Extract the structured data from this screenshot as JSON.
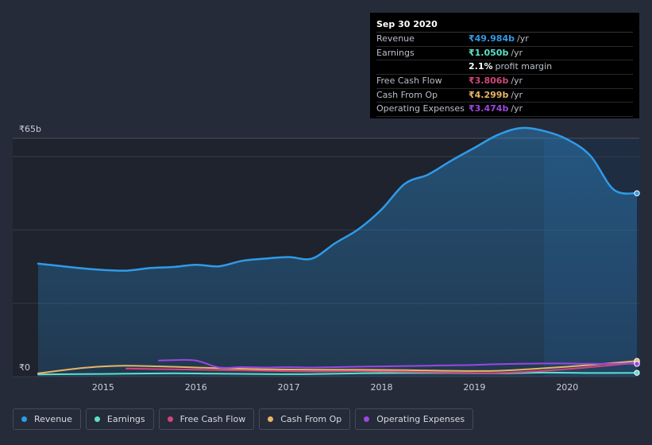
{
  "colors": {
    "revenue": "#2f9be8",
    "earnings": "#5de0c8",
    "free_cash_flow": "#d2457c",
    "cash_from_op": "#e9b466",
    "operating_expenses": "#9b47e0"
  },
  "tooltip": {
    "date": "Sep 30 2020",
    "rows": [
      {
        "label": "Revenue",
        "value": "₹49.984b",
        "unit": "/yr",
        "color": "#2f9be8"
      },
      {
        "label": "Earnings",
        "value": "₹1.050b",
        "unit": "/yr",
        "color": "#5de0c8"
      },
      {
        "label": "",
        "value": "2.1%",
        "unit": "profit margin",
        "color": "#ffffff"
      },
      {
        "label": "Free Cash Flow",
        "value": "₹3.806b",
        "unit": "/yr",
        "color": "#d2457c"
      },
      {
        "label": "Cash From Op",
        "value": "₹4.299b",
        "unit": "/yr",
        "color": "#e9b466"
      },
      {
        "label": "Operating Expenses",
        "value": "₹3.474b",
        "unit": "/yr",
        "color": "#9b47e0"
      }
    ]
  },
  "legend": [
    {
      "label": "Revenue",
      "color": "#2f9be8"
    },
    {
      "label": "Earnings",
      "color": "#5de0c8"
    },
    {
      "label": "Free Cash Flow",
      "color": "#d2457c"
    },
    {
      "label": "Cash From Op",
      "color": "#e9b466"
    },
    {
      "label": "Operating Expenses",
      "color": "#9b47e0"
    }
  ],
  "chart_data": {
    "type": "area",
    "y_top_label": "₹65b",
    "y_bottom_label": "₹0",
    "ylim": [
      0,
      65
    ],
    "xlim": [
      2014.3,
      2020.75
    ],
    "x_ticks": [
      {
        "value": 2015,
        "label": "2015"
      },
      {
        "value": 2016,
        "label": "2016"
      },
      {
        "value": 2017,
        "label": "2017"
      },
      {
        "value": 2018,
        "label": "2018"
      },
      {
        "value": 2019,
        "label": "2019"
      },
      {
        "value": 2020,
        "label": "2020"
      }
    ],
    "y_grid": [
      0,
      20,
      40,
      60,
      65
    ],
    "highlight_from": 2019.75,
    "series": [
      {
        "name": "Revenue",
        "color": "#2f9be8",
        "fill": true,
        "x": [
          2014.3,
          2014.5,
          2014.75,
          2015.0,
          2015.25,
          2015.5,
          2015.75,
          2016.0,
          2016.25,
          2016.5,
          2016.75,
          2017.0,
          2017.25,
          2017.5,
          2017.75,
          2018.0,
          2018.25,
          2018.5,
          2018.75,
          2019.0,
          2019.25,
          2019.5,
          2019.75,
          2020.0,
          2020.25,
          2020.5,
          2020.75
        ],
        "y": [
          30.8,
          30.3,
          29.6,
          29.1,
          28.9,
          29.6,
          29.9,
          30.5,
          30.1,
          31.6,
          32.2,
          32.6,
          32.2,
          36.4,
          40.2,
          45.6,
          52.6,
          55.1,
          58.9,
          62.4,
          65.9,
          67.8,
          67.0,
          64.7,
          60.2,
          51.0,
          50.0
        ]
      },
      {
        "name": "Earnings",
        "color": "#5de0c8",
        "fill": false,
        "x": [
          2014.3,
          2014.75,
          2015.25,
          2015.75,
          2016.25,
          2016.75,
          2017.25,
          2017.75,
          2018.25,
          2018.75,
          2019.25,
          2019.75,
          2020.25,
          2020.75
        ],
        "y": [
          0.6,
          0.7,
          0.8,
          0.9,
          0.8,
          0.7,
          0.7,
          0.9,
          1.0,
          1.0,
          0.9,
          1.1,
          1.0,
          1.05
        ]
      },
      {
        "name": "Free Cash Flow",
        "color": "#d2457c",
        "fill": false,
        "x": [
          2015.25,
          2015.75,
          2016.25,
          2016.75,
          2017.25,
          2017.75,
          2018.25,
          2018.75,
          2019.25,
          2019.75,
          2020.25,
          2020.75
        ],
        "y": [
          2.2,
          2.0,
          1.8,
          1.6,
          1.4,
          1.5,
          1.3,
          1.1,
          1.0,
          1.6,
          2.6,
          3.8
        ]
      },
      {
        "name": "Cash From Op",
        "color": "#e9b466",
        "fill": false,
        "x": [
          2014.3,
          2014.75,
          2015.0,
          2015.25,
          2015.75,
          2016.25,
          2016.75,
          2017.25,
          2017.75,
          2018.25,
          2018.75,
          2019.25,
          2019.75,
          2020.25,
          2020.75
        ],
        "y": [
          0.9,
          2.3,
          2.8,
          3.0,
          2.7,
          2.3,
          2.0,
          1.9,
          1.9,
          1.8,
          1.6,
          1.6,
          2.3,
          3.2,
          4.3
        ]
      },
      {
        "name": "Operating Expenses",
        "color": "#9b47e0",
        "fill": false,
        "x": [
          2015.6,
          2015.75,
          2016.0,
          2016.25,
          2016.5,
          2016.75,
          2017.0,
          2017.25,
          2017.5,
          2017.75,
          2018.0,
          2018.25,
          2018.5,
          2018.75,
          2019.0,
          2019.25,
          2019.5,
          2019.75,
          2020.0,
          2020.25,
          2020.5,
          2020.75
        ],
        "y": [
          4.4,
          4.5,
          4.4,
          2.5,
          2.6,
          2.5,
          2.6,
          2.5,
          2.6,
          2.7,
          2.8,
          2.9,
          3.0,
          3.1,
          3.2,
          3.4,
          3.5,
          3.6,
          3.6,
          3.5,
          3.5,
          3.5
        ]
      }
    ]
  }
}
